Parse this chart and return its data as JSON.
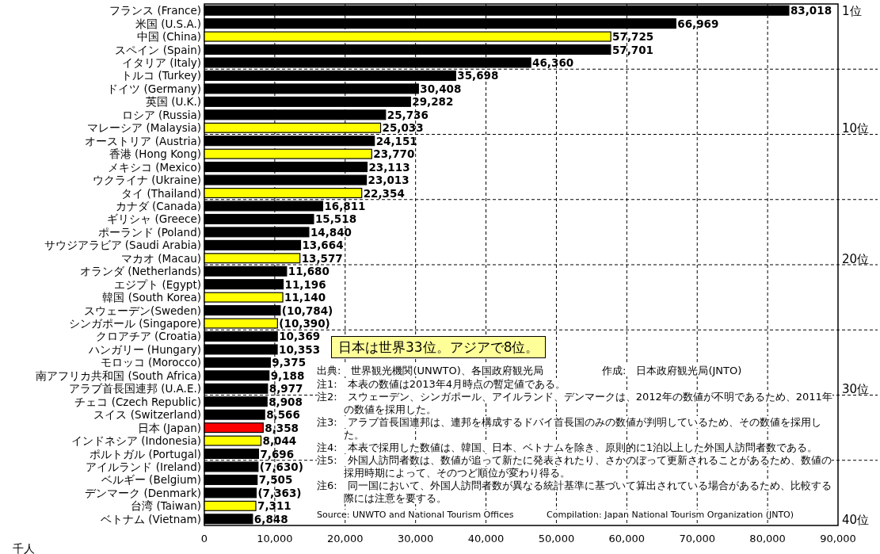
{
  "chart_data": {
    "type": "bar",
    "orientation": "horizontal",
    "categories": [
      "フランス (France)",
      "米国 (U.S.A.)",
      "中国 (China)",
      "スペイン (Spain)",
      "イタリア (Italy)",
      "トルコ (Turkey)",
      "ドイツ (Germany)",
      "英国 (U.K.)",
      "ロシア (Russia)",
      "マレーシア (Malaysia)",
      "オーストリア (Austria)",
      "香港 (Hong Kong)",
      "メキシコ (Mexico)",
      "ウクライナ (Ukraine)",
      "タイ (Thailand)",
      "カナダ (Canada)",
      "ギリシャ (Greece)",
      "ポーランド (Poland)",
      "サウジアラビア (Saudi Arabia)",
      "マカオ (Macau)",
      "オランダ (Netherlands)",
      "エジプト (Egypt)",
      "韓国 (South Korea)",
      "スウェーデン(Sweden)",
      "シンガポール (Singapore)",
      "クロアチア (Croatia)",
      "ハンガリー (Hungary)",
      "モロッコ (Morocco)",
      "南アフリカ共和国 (South Africa)",
      "アラブ首長国連邦 (U.A.E.)",
      "チェコ (Czech Republic)",
      "スイス (Switzerland)",
      "日本 (Japan)",
      "インドネシア (Indonesia)",
      "ポルトガル (Portugal)",
      "アイルランド (Ireland)",
      "ベルギー (Belgium)",
      "デンマーク (Denmark)",
      "台湾 (Taiwan)",
      "ベトナム (Vietnam)"
    ],
    "values": [
      83018,
      66969,
      57725,
      57701,
      46360,
      35698,
      30408,
      29282,
      25736,
      25033,
      24151,
      23770,
      23113,
      23013,
      22354,
      16811,
      15518,
      14840,
      13664,
      13577,
      11680,
      11196,
      11140,
      10784,
      10390,
      10369,
      10353,
      9375,
      9188,
      8977,
      8908,
      8566,
      8358,
      8044,
      7696,
      7630,
      7505,
      7363,
      7311,
      6848
    ],
    "value_labels": [
      "83,018",
      "66,969",
      "57,725",
      "57,701",
      "46,360",
      "35,698",
      "30,408",
      "29,282",
      "25,736",
      "25,033",
      "24,151",
      "23,770",
      "23,113",
      "23,013",
      "22,354",
      "16,811",
      "15,518",
      "14,840",
      "13,664",
      "13,577",
      "11,680",
      "11,196",
      "11,140",
      "(10,784)",
      "(10,390)",
      "10,369",
      "10,353",
      "9,375",
      "9,188",
      "8,977",
      "8,908",
      "8,566",
      "8,358",
      "8,044",
      "7,696",
      "(7,630)",
      "7,505",
      "(7,363)",
      "7,311",
      "6,848"
    ],
    "colors": [
      "#000000",
      "#000000",
      "#ffff00",
      "#000000",
      "#000000",
      "#000000",
      "#000000",
      "#000000",
      "#000000",
      "#ffff00",
      "#000000",
      "#ffff00",
      "#000000",
      "#000000",
      "#ffff00",
      "#000000",
      "#000000",
      "#000000",
      "#000000",
      "#ffff00",
      "#000000",
      "#000000",
      "#ffff00",
      "#000000",
      "#ffff00",
      "#000000",
      "#000000",
      "#000000",
      "#000000",
      "#000000",
      "#000000",
      "#000000",
      "#ff0000",
      "#ffff00",
      "#000000",
      "#000000",
      "#000000",
      "#000000",
      "#ffff00",
      "#000000"
    ],
    "xlim": [
      0,
      90000
    ],
    "xticks": [
      0,
      {
        "value": 10000,
        "label": "10,000"
      },
      {
        "value": 20000,
        "label": "20,000"
      },
      {
        "value": 30000,
        "label": "30,000"
      },
      {
        "value": 40000,
        "label": "40,000"
      },
      {
        "value": 50000,
        "label": "50,000"
      },
      {
        "value": 60000,
        "label": "60,000"
      },
      {
        "value": 70000,
        "label": "70,000"
      },
      {
        "value": 80000,
        "label": "80,000"
      },
      {
        "value": 90000,
        "label": "90,000"
      }
    ],
    "xlabel": "千人",
    "grid": true,
    "annotations": [
      "日本は世界33位。アジアで8位。",
      "出典:　世界観光機関(UNWTO)、各国政府観光局",
      "作成:　日本政府観光局(JNTO)",
      "注1:　本表の数値は2013年4月時点の暫定値である。",
      "注2:　スウェーデン、シンガポール、アイルランド、デンマークは、2012年の数値が不明であるため、2011年の数値を採用した。",
      "注3:　アラブ首長国連邦は、連邦を構成するドバイ首長国のみの数値が判明しているため、その数値を採用した。",
      "注4:　本表で採用した数値は、韓国、日本、ベトナムを除き、原則的に1泊以上した外国人訪問者数である。",
      "注5:　外国人訪問者数は、数値が追って新たに発表されたり、さかのぼって更新されることがあるため、数値の採用時期によって、そのつど順位が変わり得る。",
      "注6:　同一国において、外国人訪問者数が異なる統計基準に基づいて算出されている場合があるため、比較する際には注意を要する。",
      "Source: UNWTO and National Tourism Offices",
      "Compilation: Japan National Tourism Organization (JNTO)",
      "1位",
      "10位",
      "20位",
      "30位",
      "40位"
    ]
  }
}
